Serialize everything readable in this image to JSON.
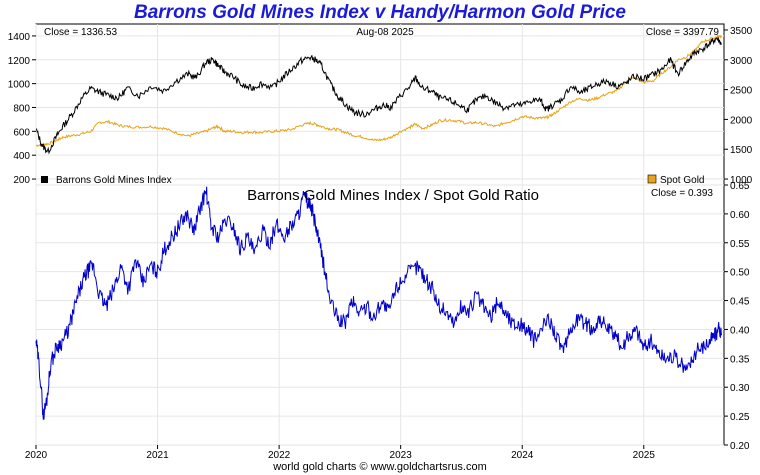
{
  "page": {
    "title": "Barrons Gold Mines Index v Handy/Harmon Gold Price",
    "footer": "world gold charts © www.goldchartsrus.com"
  },
  "colors": {
    "gold_index": "#000000",
    "spot_gold": "#e8a317",
    "ratio": "#0000cc",
    "grid": "#e6e6e6",
    "title": "#1a1adb"
  },
  "chart_data": [
    {
      "type": "line",
      "panel": "top",
      "date_label": "Aug-08  2025",
      "left_close": "Close = 1336.53",
      "right_close": "Close = 3397.79",
      "legend_left": "Barrons Gold Mines Index",
      "legend_right": "Spot Gold",
      "left_axis": {
        "min": 150,
        "max": 1500,
        "ticks": [
          200,
          400,
          600,
          800,
          1000,
          1200,
          1400
        ]
      },
      "right_axis": {
        "min": 900,
        "max": 3600,
        "ticks": [
          1000,
          1500,
          2000,
          2500,
          3000,
          3500
        ]
      },
      "series": [
        {
          "name": "Barrons Gold Mines Index",
          "axis": "left",
          "x": [
            2020.0,
            2020.05,
            2020.1,
            2020.17,
            2020.22,
            2020.3,
            2020.38,
            2020.45,
            2020.52,
            2020.6,
            2020.68,
            2020.75,
            2020.85,
            2020.95,
            2021.05,
            2021.15,
            2021.25,
            2021.32,
            2021.4,
            2021.46,
            2021.5,
            2021.55,
            2021.62,
            2021.7,
            2021.78,
            2021.85,
            2021.95,
            2022.02,
            2022.1,
            2022.18,
            2022.25,
            2022.3,
            2022.35,
            2022.42,
            2022.48,
            2022.55,
            2022.62,
            2022.7,
            2022.78,
            2022.85,
            2022.92,
            2023.0,
            2023.08,
            2023.12,
            2023.18,
            2023.25,
            2023.32,
            2023.4,
            2023.48,
            2023.55,
            2023.62,
            2023.7,
            2023.78,
            2023.85,
            2023.92,
            2024.0,
            2024.08,
            2024.15,
            2024.2,
            2024.25,
            2024.32,
            2024.4,
            2024.48,
            2024.55,
            2024.62,
            2024.7,
            2024.78,
            2024.85,
            2024.92,
            2025.0,
            2025.08,
            2025.15,
            2025.22,
            2025.28,
            2025.35,
            2025.42,
            2025.48,
            2025.55,
            2025.6,
            2025.64
          ],
          "y": [
            620,
            480,
            430,
            560,
            640,
            750,
            880,
            960,
            930,
            900,
            880,
            960,
            900,
            980,
            940,
            1020,
            1080,
            1050,
            1180,
            1200,
            1150,
            1100,
            1060,
            980,
            960,
            1000,
            970,
            1040,
            1120,
            1190,
            1220,
            1200,
            1150,
            1000,
            900,
            820,
            760,
            740,
            780,
            820,
            800,
            900,
            980,
            1050,
            960,
            940,
            880,
            860,
            820,
            780,
            860,
            900,
            840,
            800,
            820,
            820,
            860,
            860,
            780,
            820,
            860,
            980,
            920,
            960,
            1000,
            1020,
            980,
            1000,
            1060,
            1040,
            1080,
            1120,
            1200,
            1080,
            1180,
            1260,
            1290,
            1340,
            1380,
            1336.53
          ]
        },
        {
          "name": "Spot Gold",
          "axis": "right",
          "x": [
            2020.0,
            2020.05,
            2020.1,
            2020.17,
            2020.22,
            2020.3,
            2020.38,
            2020.45,
            2020.52,
            2020.6,
            2020.68,
            2020.75,
            2020.85,
            2020.95,
            2021.05,
            2021.15,
            2021.25,
            2021.32,
            2021.4,
            2021.46,
            2021.5,
            2021.55,
            2021.62,
            2021.7,
            2021.78,
            2021.85,
            2021.95,
            2022.02,
            2022.1,
            2022.18,
            2022.25,
            2022.3,
            2022.35,
            2022.42,
            2022.48,
            2022.55,
            2022.62,
            2022.7,
            2022.78,
            2022.85,
            2022.92,
            2023.0,
            2023.08,
            2023.12,
            2023.18,
            2023.25,
            2023.32,
            2023.4,
            2023.48,
            2023.55,
            2023.62,
            2023.7,
            2023.78,
            2023.85,
            2023.92,
            2024.0,
            2024.08,
            2024.15,
            2024.2,
            2024.25,
            2024.32,
            2024.4,
            2024.48,
            2024.55,
            2024.62,
            2024.7,
            2024.78,
            2024.85,
            2024.92,
            2025.0,
            2025.08,
            2025.15,
            2025.22,
            2025.28,
            2025.35,
            2025.42,
            2025.48,
            2025.55,
            2025.6,
            2025.64
          ],
          "y": [
            1560,
            1580,
            1590,
            1650,
            1700,
            1730,
            1760,
            1800,
            1950,
            1960,
            1900,
            1880,
            1870,
            1880,
            1850,
            1780,
            1720,
            1760,
            1800,
            1860,
            1880,
            1800,
            1800,
            1780,
            1790,
            1780,
            1800,
            1810,
            1830,
            1900,
            1940,
            1920,
            1880,
            1840,
            1830,
            1780,
            1730,
            1700,
            1650,
            1660,
            1700,
            1800,
            1870,
            1920,
            1850,
            1900,
            1980,
            1990,
            1970,
            1930,
            1950,
            1920,
            1880,
            1940,
            1980,
            2050,
            2030,
            2020,
            2030,
            2080,
            2180,
            2300,
            2350,
            2320,
            2360,
            2430,
            2480,
            2620,
            2700,
            2620,
            2650,
            2780,
            2880,
            3000,
            3050,
            3150,
            3300,
            3350,
            3380,
            3397.79
          ]
        }
      ]
    },
    {
      "type": "line",
      "panel": "bottom",
      "title": "Barrons Gold Mines Index  /  Spot Gold Ratio",
      "close_label": "Close = 0.393",
      "y_axis": {
        "min": 0.2,
        "max": 0.65,
        "ticks": [
          "0.20",
          "0.25",
          "0.30",
          "0.35",
          "0.40",
          "0.45",
          "0.50",
          "0.55",
          "0.60",
          "0.65"
        ]
      },
      "x_axis": {
        "min": 2020.0,
        "max": 2025.66,
        "ticks": [
          "2020",
          "2021",
          "2022",
          "2023",
          "2024",
          "2025"
        ]
      },
      "series": [
        {
          "name": "Barrons Gold Mines Index / Spot Gold Ratio",
          "x": [
            2020.0,
            2020.03,
            2020.06,
            2020.09,
            2020.12,
            2020.17,
            2020.22,
            2020.27,
            2020.32,
            2020.38,
            2020.42,
            2020.47,
            2020.52,
            2020.58,
            2020.64,
            2020.7,
            2020.76,
            2020.82,
            2020.88,
            2020.94,
            2021.0,
            2021.06,
            2021.12,
            2021.18,
            2021.24,
            2021.3,
            2021.35,
            2021.4,
            2021.44,
            2021.5,
            2021.56,
            2021.62,
            2021.68,
            2021.74,
            2021.8,
            2021.86,
            2021.92,
            2021.98,
            2022.04,
            2022.1,
            2022.16,
            2022.2,
            2022.24,
            2022.28,
            2022.32,
            2022.36,
            2022.42,
            2022.48,
            2022.54,
            2022.6,
            2022.66,
            2022.72,
            2022.78,
            2022.84,
            2022.9,
            2022.96,
            2023.02,
            2023.08,
            2023.14,
            2023.2,
            2023.26,
            2023.32,
            2023.38,
            2023.44,
            2023.5,
            2023.56,
            2023.62,
            2023.68,
            2023.74,
            2023.8,
            2023.86,
            2023.92,
            2023.98,
            2024.04,
            2024.1,
            2024.16,
            2024.22,
            2024.28,
            2024.34,
            2024.4,
            2024.46,
            2024.52,
            2024.58,
            2024.64,
            2024.7,
            2024.76,
            2024.82,
            2024.88,
            2024.94,
            2025.0,
            2025.06,
            2025.12,
            2025.18,
            2025.24,
            2025.3,
            2025.36,
            2025.42,
            2025.48,
            2025.54,
            2025.58,
            2025.62,
            2025.64
          ],
          "y": [
            0.38,
            0.33,
            0.25,
            0.28,
            0.34,
            0.37,
            0.38,
            0.4,
            0.44,
            0.48,
            0.5,
            0.51,
            0.46,
            0.44,
            0.47,
            0.51,
            0.47,
            0.52,
            0.48,
            0.51,
            0.5,
            0.54,
            0.56,
            0.58,
            0.6,
            0.57,
            0.61,
            0.64,
            0.58,
            0.56,
            0.59,
            0.58,
            0.54,
            0.56,
            0.53,
            0.57,
            0.55,
            0.58,
            0.56,
            0.58,
            0.6,
            0.63,
            0.62,
            0.6,
            0.56,
            0.52,
            0.45,
            0.42,
            0.41,
            0.45,
            0.43,
            0.44,
            0.42,
            0.45,
            0.43,
            0.47,
            0.49,
            0.5,
            0.51,
            0.49,
            0.47,
            0.44,
            0.43,
            0.41,
            0.44,
            0.43,
            0.46,
            0.44,
            0.42,
            0.45,
            0.43,
            0.41,
            0.41,
            0.4,
            0.38,
            0.4,
            0.42,
            0.39,
            0.36,
            0.4,
            0.42,
            0.41,
            0.4,
            0.42,
            0.4,
            0.39,
            0.37,
            0.39,
            0.4,
            0.37,
            0.38,
            0.36,
            0.35,
            0.355,
            0.34,
            0.33,
            0.36,
            0.37,
            0.38,
            0.39,
            0.4,
            0.393
          ]
        }
      ]
    }
  ]
}
